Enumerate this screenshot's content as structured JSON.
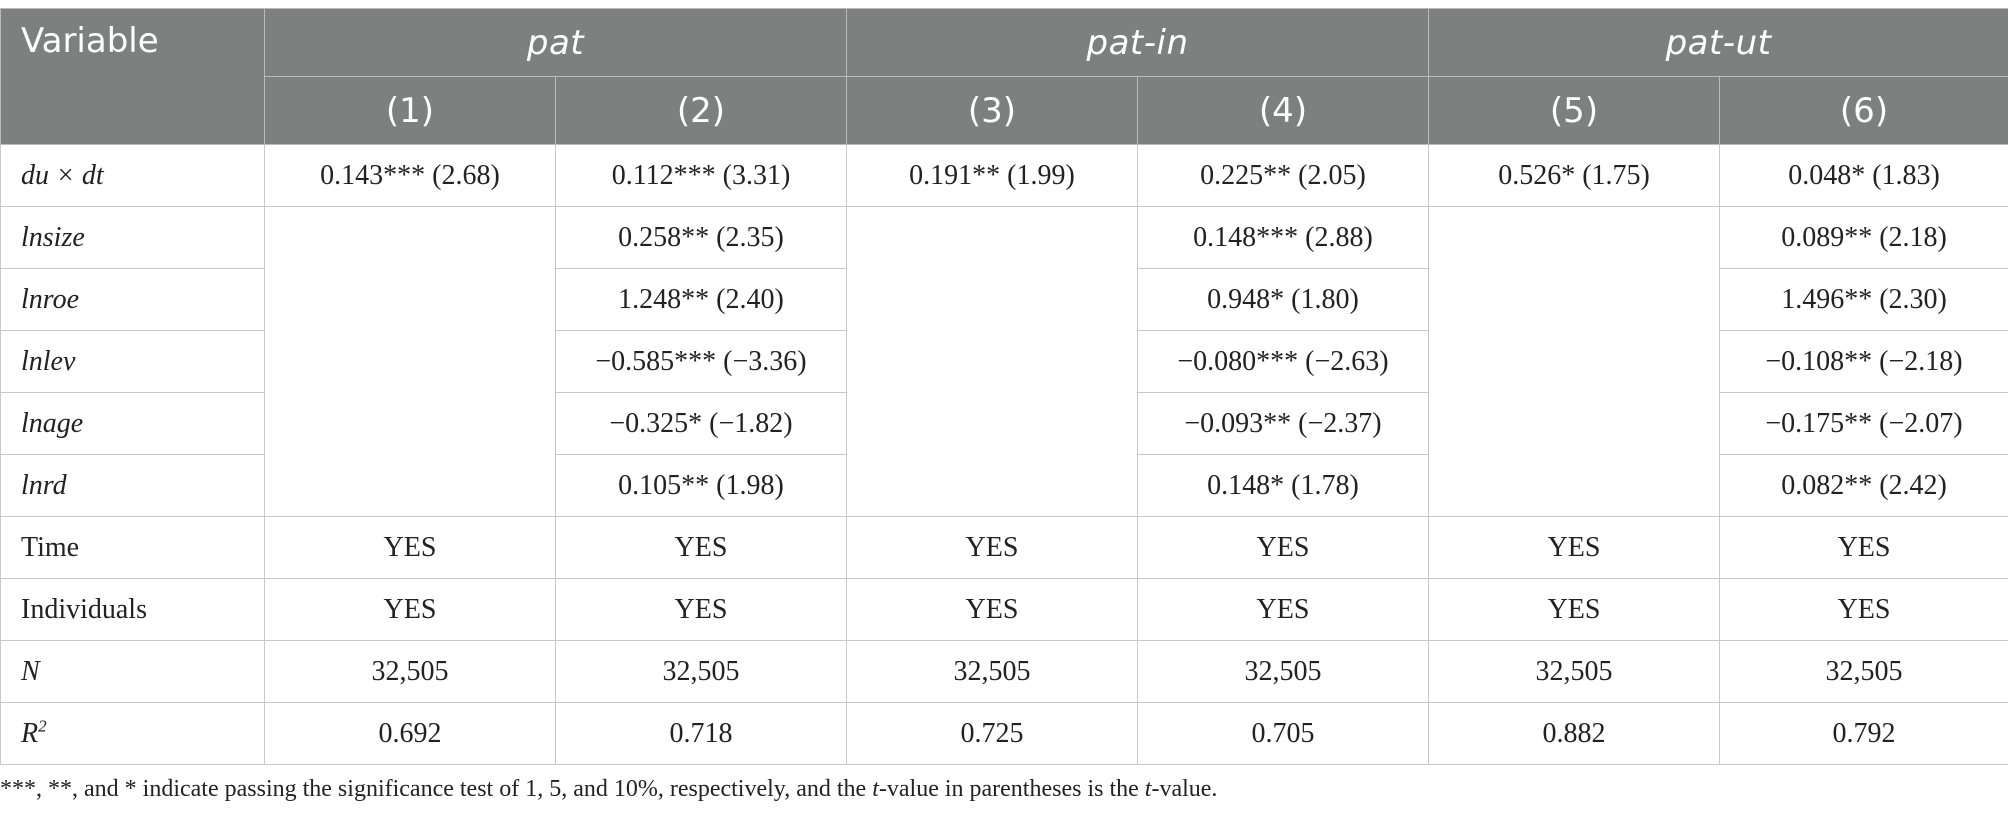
{
  "header": {
    "variable": "Variable",
    "groups": [
      "pat",
      "pat-in",
      "pat-ut"
    ],
    "columns": [
      "(1)",
      "(2)",
      "(3)",
      "(4)",
      "(5)",
      "(6)"
    ]
  },
  "rows": {
    "dudt": {
      "label": "du × dt",
      "cells": [
        "0.143*** (2.68)",
        "0.112*** (3.31)",
        "0.191** (1.99)",
        "0.225** (2.05)",
        "0.526* (1.75)",
        "0.048* (1.83)"
      ]
    },
    "lnsize": {
      "label": "lnsize",
      "c2": "0.258** (2.35)",
      "c4": "0.148*** (2.88)",
      "c6": "0.089** (2.18)"
    },
    "lnroe": {
      "label": "lnroe",
      "c2": "1.248** (2.40)",
      "c4": "0.948* (1.80)",
      "c6": "1.496** (2.30)"
    },
    "lnlev": {
      "label": "lnlev",
      "c2": "−0.585*** (−3.36)",
      "c4": "−0.080*** (−2.63)",
      "c6": "−0.108** (−2.18)"
    },
    "lnage": {
      "label": "lnage",
      "c2": "−0.325* (−1.82)",
      "c4": "−0.093** (−2.37)",
      "c6": "−0.175** (−2.07)"
    },
    "lnrd": {
      "label": "lnrd",
      "c2": "0.105** (1.98)",
      "c4": "0.148* (1.78)",
      "c6": "0.082** (2.42)"
    },
    "time": {
      "label": "Time",
      "cells": [
        "YES",
        "YES",
        "YES",
        "YES",
        "YES",
        "YES"
      ]
    },
    "individuals": {
      "label": "Individuals",
      "cells": [
        "YES",
        "YES",
        "YES",
        "YES",
        "YES",
        "YES"
      ]
    },
    "n": {
      "label": "N",
      "cells": [
        "32,505",
        "32,505",
        "32,505",
        "32,505",
        "32,505",
        "32,505"
      ]
    },
    "r2": {
      "label": "R",
      "label_sup": "2",
      "cells": [
        "0.692",
        "0.718",
        "0.725",
        "0.705",
        "0.882",
        "0.792"
      ]
    }
  },
  "note": {
    "part1": "***, **, and * indicate passing the significance test of 1, 5, and 10%, respectively, and the ",
    "t1": "t",
    "part2": "-value in parentheses is the ",
    "t2": "t",
    "part3": "-value."
  }
}
